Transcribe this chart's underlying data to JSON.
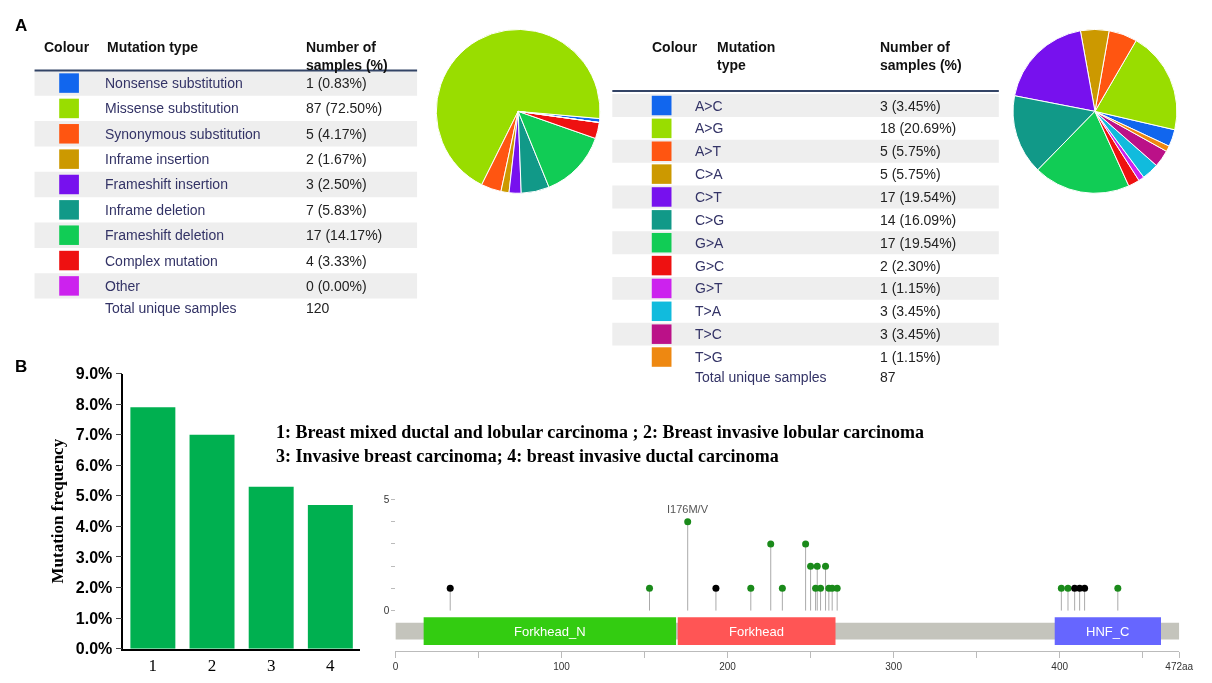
{
  "chart_data": [
    {
      "type": "pie",
      "categories": [
        "Nonsense substitution",
        "Missense substitution",
        "Synonymous substitution",
        "Inframe insertion",
        "Frameshift insertion",
        "Inframe deletion",
        "Frameshift deletion",
        "Complex mutation",
        "Other"
      ],
      "values": [
        1,
        87,
        5,
        2,
        3,
        7,
        17,
        4,
        0
      ],
      "value_labels": [
        "1 (0.83%)",
        "87 (72.50%)",
        "5 (4.17%)",
        "2 (1.67%)",
        "3 (2.50%)",
        "7 (5.83%)",
        "17 (14.17%)",
        "4 (3.33%)",
        "0 (0.00%)"
      ],
      "colors": [
        "#1166ee",
        "#99dd00",
        "#ff5511",
        "#cc9900",
        "#7711ee",
        "#119988",
        "#11cc55",
        "#ee1111",
        "#cc22ee"
      ],
      "legend": "left",
      "annotations": [
        "A",
        "Colour",
        "Mutation type",
        "Number of samples (%)",
        "Total unique samples",
        "120"
      ]
    },
    {
      "type": "pie",
      "categories": [
        "A>C",
        "A>G",
        "A>T",
        "C>A",
        "C>T",
        "C>G",
        "G>A",
        "G>C",
        "G>T",
        "T>A",
        "T>C",
        "T>G"
      ],
      "values": [
        3,
        18,
        5,
        5,
        17,
        14,
        17,
        2,
        1,
        3,
        3,
        1
      ],
      "value_labels": [
        "3 (3.45%)",
        "18 (20.69%)",
        "5 (5.75%)",
        "5 (5.75%)",
        "17 (19.54%)",
        "14 (16.09%)",
        "17 (19.54%)",
        "2 (2.30%)",
        "1 (1.15%)",
        "3 (3.45%)",
        "3 (3.45%)",
        "1 (1.15%)"
      ],
      "colors": [
        "#1166ee",
        "#99dd00",
        "#ff5511",
        "#cc9900",
        "#7711ee",
        "#119988",
        "#11cc55",
        "#ee1111",
        "#cc22ee",
        "#11bbdd",
        "#bb1188",
        "#ee8811"
      ],
      "legend": "left",
      "annotations": [
        "Colour",
        "Mutation type",
        "Number of samples (%)",
        "Total unique samples",
        "87"
      ]
    },
    {
      "type": "bar",
      "categories": [
        "1",
        "2",
        "3",
        "4"
      ],
      "values": [
        7.9,
        7.0,
        5.3,
        4.7
      ],
      "color": "#00b050",
      "ylim": [
        0,
        9
      ],
      "yticks": [
        {
          "value": 0,
          "label": "0.0%"
        },
        {
          "value": 1,
          "label": "1.0%"
        },
        {
          "value": 2,
          "label": "2.0%"
        },
        {
          "value": 3,
          "label": "3.0%"
        },
        {
          "value": 4,
          "label": "4.0%"
        },
        {
          "value": 5,
          "label": "5.0%"
        },
        {
          "value": 6,
          "label": "6.0%"
        },
        {
          "value": 7,
          "label": "7.0%"
        },
        {
          "value": 8,
          "label": "8.0%"
        },
        {
          "value": 9,
          "label": "9.0%"
        }
      ],
      "ylabel": "Mutation frequency",
      "grid": false,
      "annotations": [
        "B",
        "1: Breast mixed ductal and lobular carcinoma ; 2: Breast invasive lobular carcinoma",
        "3: Invasive breast carcinoma; 4: breast invasive ductal carcinoma"
      ]
    },
    {
      "type": "lollipop",
      "marker": "circle",
      "grid": false,
      "x": [
        33,
        153,
        176,
        193,
        214,
        226,
        233,
        247,
        250,
        253,
        254,
        256,
        259,
        261,
        263,
        266,
        401,
        405,
        409,
        412,
        415,
        435
      ],
      "values": [
        1,
        1,
        4,
        1,
        1,
        3,
        1,
        3,
        2,
        1,
        2,
        1,
        2,
        1,
        1,
        1,
        1,
        1,
        1,
        1,
        1,
        1
      ],
      "colors": [
        "#000000",
        "#1a8a1a",
        "#1a8a1a",
        "#000000",
        "#1a8a1a",
        "#1a8a1a",
        "#1a8a1a",
        "#1a8a1a",
        "#1a8a1a",
        "#1a8a1a",
        "#1a8a1a",
        "#1a8a1a",
        "#1a8a1a",
        "#1a8a1a",
        "#1a8a1a",
        "#1a8a1a",
        "#1a8a1a",
        "#1a8a1a",
        "#000000",
        "#000000",
        "#000000",
        "#1a8a1a"
      ],
      "xlim": [
        0,
        472
      ],
      "xticks": [
        0,
        {
          "value": 50,
          "label": null
        },
        100,
        {
          "value": 150,
          "label": null
        },
        200,
        {
          "value": 250,
          "label": null
        },
        300,
        {
          "value": 350,
          "label": null
        },
        400,
        {
          "value": 450,
          "label": null
        },
        {
          "value": 472,
          "label": "472aa"
        }
      ],
      "ylim": [
        -1.8,
        5
      ],
      "yticks": [
        0,
        {
          "value": 1,
          "label": null
        },
        {
          "value": 2,
          "label": null
        },
        {
          "value": 3,
          "label": null
        },
        {
          "value": 4,
          "label": null
        },
        5
      ],
      "bands": [
        {
          "axis": "x",
          "from": 0,
          "to": 472,
          "label": null,
          "color": "#c4c4bc"
        },
        {
          "axis": "x",
          "from": 17,
          "to": 169,
          "label": "Forkhead_N",
          "color": "#33cc11"
        },
        {
          "axis": "x",
          "from": 170,
          "to": 265,
          "label": "Forkhead",
          "color": "#ff5555"
        },
        {
          "axis": "x",
          "from": 397,
          "to": 461,
          "label": "HNF_C",
          "color": "#6666ff"
        }
      ],
      "annotations": [
        {
          "text": "I176M/V",
          "x": 176,
          "y": 4
        }
      ]
    }
  ]
}
